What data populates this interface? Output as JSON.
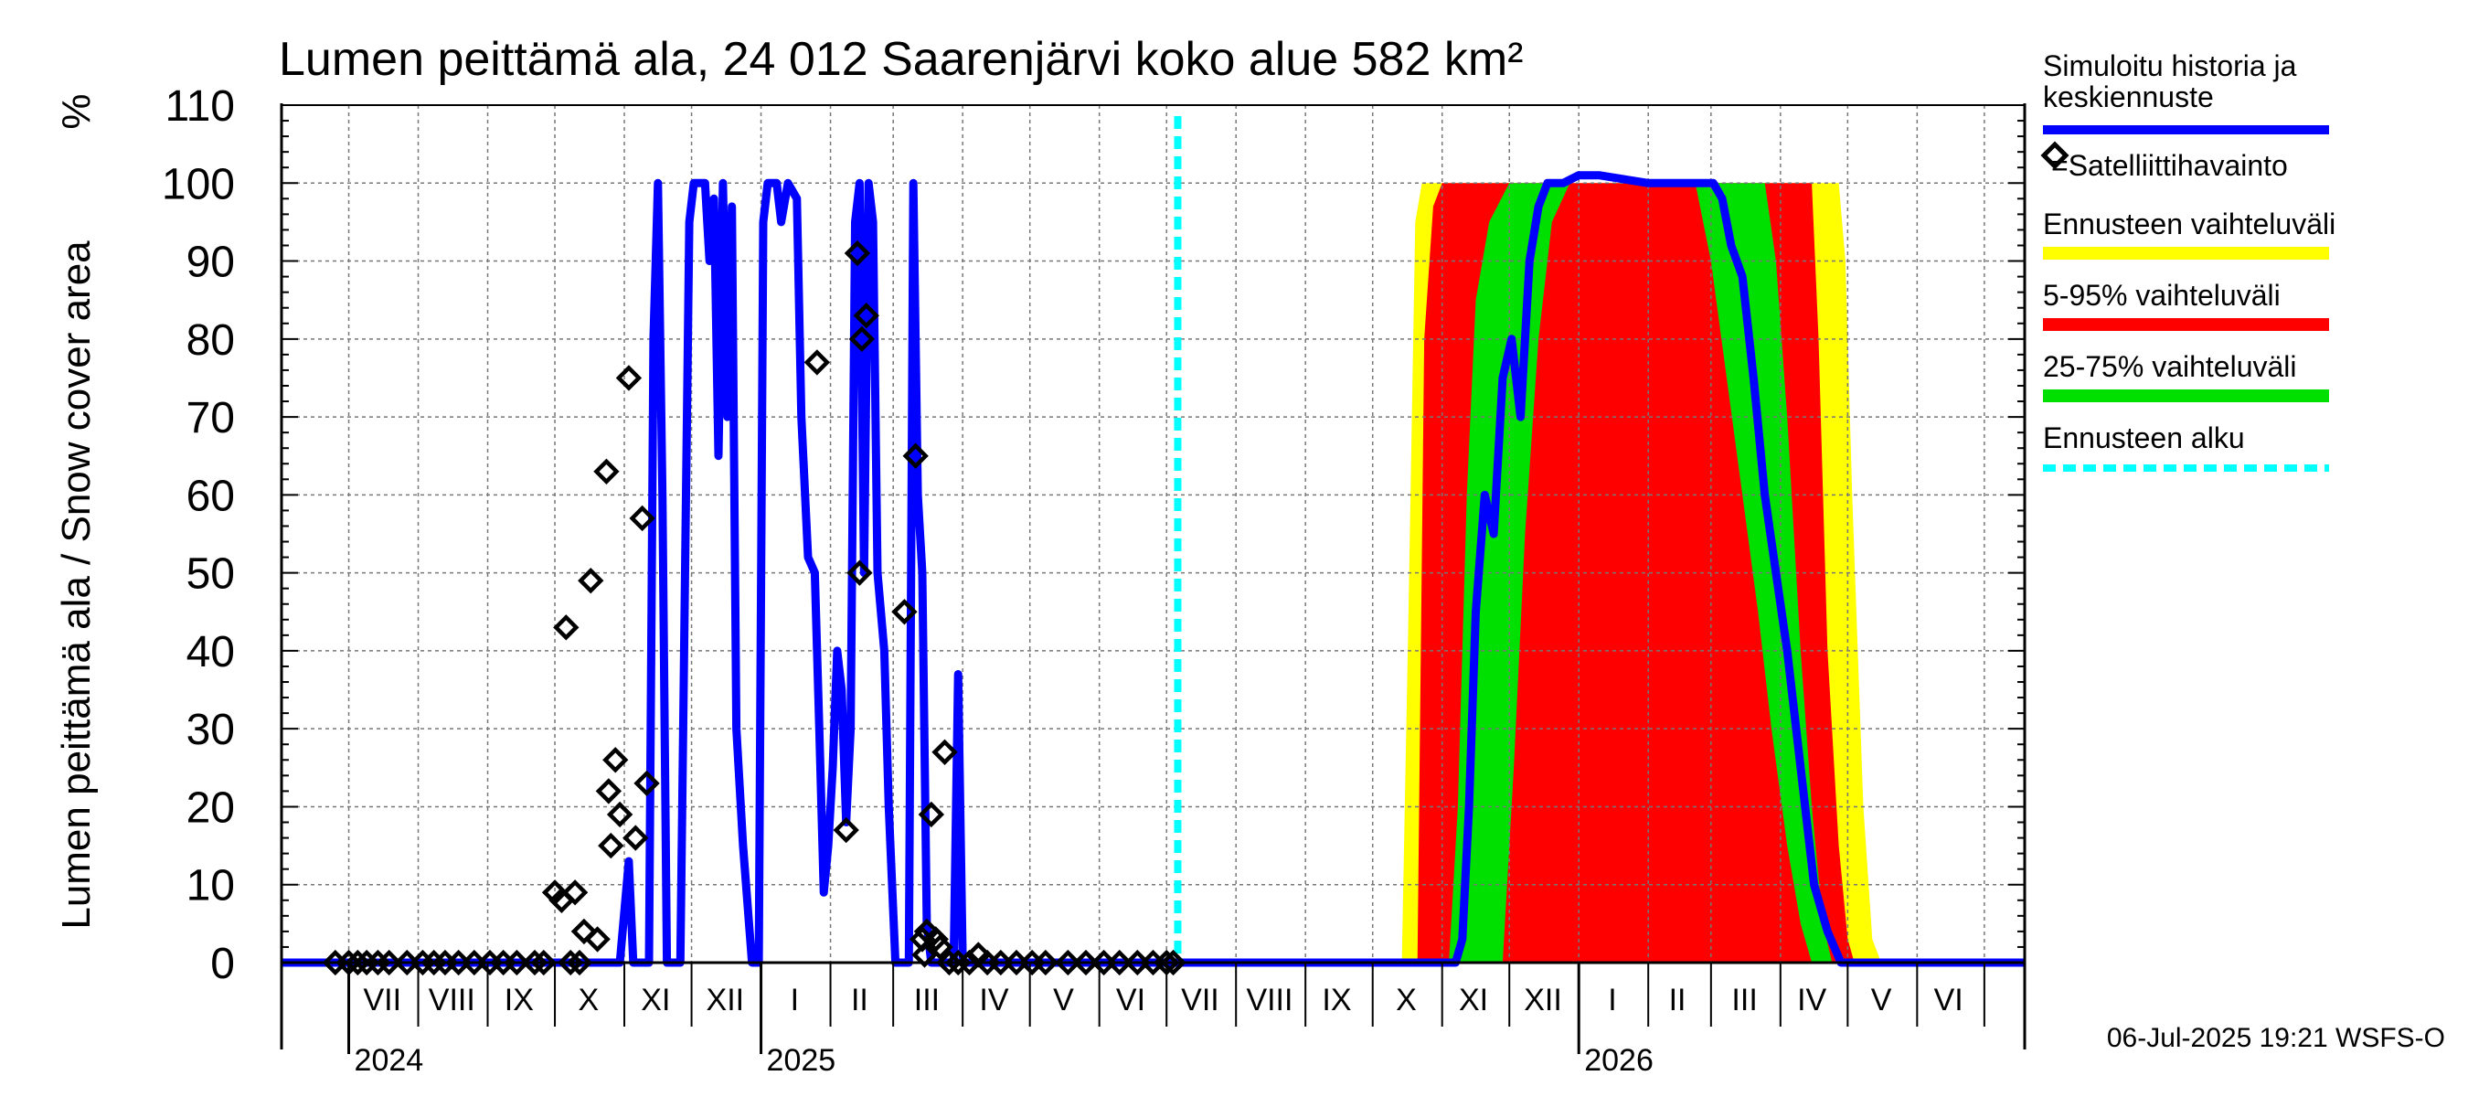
{
  "chart_data": {
    "type": "area",
    "title": "Lumen peittämä ala, 24 012 Saarenjärvi koko alue 582 km²",
    "ylabel": "Lumen peittämä ala / Snow cover area",
    "yunit": "%",
    "ylim": [
      0,
      110
    ],
    "yticks": [
      0,
      10,
      20,
      30,
      40,
      50,
      60,
      70,
      80,
      90,
      100,
      110
    ],
    "grid": true,
    "xlim": [
      "2024-06-01",
      "2026-07-19"
    ],
    "month_labels": [
      {
        "label": "VII",
        "date": "2024-07-16"
      },
      {
        "label": "VIII",
        "date": "2024-08-16"
      },
      {
        "label": "IX",
        "date": "2024-09-15"
      },
      {
        "label": "X",
        "date": "2024-10-16"
      },
      {
        "label": "XI",
        "date": "2024-11-15"
      },
      {
        "label": "XII",
        "date": "2024-12-16"
      },
      {
        "label": "I",
        "date": "2025-01-16"
      },
      {
        "label": "II",
        "date": "2025-02-14"
      },
      {
        "label": "III",
        "date": "2025-03-16"
      },
      {
        "label": "IV",
        "date": "2025-04-15"
      },
      {
        "label": "V",
        "date": "2025-05-16"
      },
      {
        "label": "VI",
        "date": "2025-06-15"
      },
      {
        "label": "VII",
        "date": "2025-07-16"
      },
      {
        "label": "VIII",
        "date": "2025-08-16"
      },
      {
        "label": "IX",
        "date": "2025-09-15"
      },
      {
        "label": "X",
        "date": "2025-10-16"
      },
      {
        "label": "XI",
        "date": "2025-11-15"
      },
      {
        "label": "XII",
        "date": "2025-12-16"
      },
      {
        "label": "I",
        "date": "2026-01-16"
      },
      {
        "label": "II",
        "date": "2026-02-14"
      },
      {
        "label": "III",
        "date": "2026-03-16"
      },
      {
        "label": "IV",
        "date": "2026-04-15"
      },
      {
        "label": "V",
        "date": "2026-05-16"
      },
      {
        "label": "VI",
        "date": "2026-06-15"
      }
    ],
    "month_boundaries": [
      "2024-07-01",
      "2024-08-01",
      "2024-09-01",
      "2024-10-01",
      "2024-11-01",
      "2024-12-01",
      "2025-01-01",
      "2025-02-01",
      "2025-03-01",
      "2025-04-01",
      "2025-05-01",
      "2025-06-01",
      "2025-07-01",
      "2025-08-01",
      "2025-09-01",
      "2025-10-01",
      "2025-11-01",
      "2025-12-01",
      "2026-01-01",
      "2026-02-01",
      "2026-03-01",
      "2026-04-01",
      "2026-05-01",
      "2026-06-01",
      "2026-07-01"
    ],
    "year_labels": [
      {
        "label": "2024",
        "date": "2024-07-01"
      },
      {
        "label": "2025",
        "date": "2025-01-01"
      },
      {
        "label": "2026",
        "date": "2026-01-01"
      }
    ],
    "forecast_start": "2025-07-06",
    "legend": {
      "placement": "right",
      "entries": [
        {
          "name": "Simuloitu historia ja keskiennuste",
          "color": "#0000ff",
          "style": "line"
        },
        {
          "name": "=Satelliittihavainto",
          "color": "#000000",
          "style": "diamond"
        },
        {
          "name": "Ennusteen vaihteluväli",
          "color": "#ffff00",
          "style": "band"
        },
        {
          "name": "5-95% vaihteluväli",
          "color": "#ff0000",
          "style": "band"
        },
        {
          "name": "25-75% vaihteluväli",
          "color": "#00e000",
          "style": "band"
        },
        {
          "name": "Ennusteen alku",
          "color": "#00ffff",
          "style": "dashed"
        }
      ]
    },
    "series": [
      {
        "name": "Simuloitu historia ja keskiennuste",
        "color": "#0000ff",
        "points": [
          [
            "2024-06-01",
            0
          ],
          [
            "2024-10-30",
            0
          ],
          [
            "2024-11-03",
            13
          ],
          [
            "2024-11-05",
            0
          ],
          [
            "2024-11-12",
            0
          ],
          [
            "2024-11-14",
            80
          ],
          [
            "2024-11-16",
            100
          ],
          [
            "2024-11-18",
            60
          ],
          [
            "2024-11-20",
            0
          ],
          [
            "2024-11-26",
            0
          ],
          [
            "2024-11-30",
            95
          ],
          [
            "2024-12-02",
            100
          ],
          [
            "2024-12-07",
            100
          ],
          [
            "2024-12-09",
            90
          ],
          [
            "2024-12-11",
            98
          ],
          [
            "2024-12-13",
            65
          ],
          [
            "2024-12-15",
            100
          ],
          [
            "2024-12-17",
            70
          ],
          [
            "2024-12-19",
            97
          ],
          [
            "2024-12-21",
            30
          ],
          [
            "2024-12-24",
            15
          ],
          [
            "2024-12-28",
            0
          ],
          [
            "2024-12-31",
            0
          ],
          [
            "2025-01-02",
            95
          ],
          [
            "2025-01-04",
            100
          ],
          [
            "2025-01-08",
            100
          ],
          [
            "2025-01-10",
            95
          ],
          [
            "2025-01-13",
            100
          ],
          [
            "2025-01-17",
            98
          ],
          [
            "2025-01-19",
            70
          ],
          [
            "2025-01-22",
            52
          ],
          [
            "2025-01-25",
            50
          ],
          [
            "2025-01-27",
            30
          ],
          [
            "2025-01-29",
            9
          ],
          [
            "2025-01-31",
            15
          ],
          [
            "2025-02-02",
            25
          ],
          [
            "2025-02-04",
            40
          ],
          [
            "2025-02-06",
            35
          ],
          [
            "2025-02-08",
            18
          ],
          [
            "2025-02-10",
            30
          ],
          [
            "2025-02-12",
            95
          ],
          [
            "2025-02-14",
            100
          ],
          [
            "2025-02-16",
            50
          ],
          [
            "2025-02-18",
            100
          ],
          [
            "2025-02-20",
            95
          ],
          [
            "2025-02-22",
            50
          ],
          [
            "2025-02-25",
            40
          ],
          [
            "2025-02-27",
            20
          ],
          [
            "2025-03-02",
            0
          ],
          [
            "2025-03-08",
            0
          ],
          [
            "2025-03-10",
            100
          ],
          [
            "2025-03-12",
            60
          ],
          [
            "2025-03-14",
            50
          ],
          [
            "2025-03-16",
            5
          ],
          [
            "2025-03-18",
            0
          ],
          [
            "2025-03-28",
            0
          ],
          [
            "2025-03-30",
            37
          ],
          [
            "2025-04-01",
            0
          ],
          [
            "2025-07-06",
            0
          ],
          [
            "2025-11-07",
            0
          ],
          [
            "2025-11-10",
            3
          ],
          [
            "2025-11-13",
            20
          ],
          [
            "2025-11-16",
            45
          ],
          [
            "2025-11-20",
            60
          ],
          [
            "2025-11-24",
            55
          ],
          [
            "2025-11-28",
            75
          ],
          [
            "2025-12-02",
            80
          ],
          [
            "2025-12-06",
            70
          ],
          [
            "2025-12-10",
            90
          ],
          [
            "2025-12-14",
            97
          ],
          [
            "2025-12-18",
            100
          ],
          [
            "2025-12-25",
            100
          ],
          [
            "2026-01-01",
            101
          ],
          [
            "2026-01-10",
            101
          ],
          [
            "2026-02-01",
            100
          ],
          [
            "2026-03-02",
            100
          ],
          [
            "2026-03-06",
            98
          ],
          [
            "2026-03-10",
            92
          ],
          [
            "2026-03-15",
            88
          ],
          [
            "2026-03-20",
            75
          ],
          [
            "2026-03-25",
            60
          ],
          [
            "2026-03-30",
            50
          ],
          [
            "2026-04-04",
            40
          ],
          [
            "2026-04-10",
            25
          ],
          [
            "2026-04-16",
            10
          ],
          [
            "2026-04-22",
            4
          ],
          [
            "2026-04-28",
            0
          ],
          [
            "2026-07-19",
            0
          ]
        ]
      }
    ],
    "bands": [
      {
        "name": "Ennusteen vaihteluväli",
        "color": "#ffff00",
        "lower": [
          [
            "2025-07-06",
            0
          ],
          [
            "2026-07-19",
            0
          ]
        ],
        "upper": [
          [
            "2025-07-06",
            0
          ],
          [
            "2025-10-14",
            0
          ],
          [
            "2025-10-17",
            45
          ],
          [
            "2025-10-20",
            95
          ],
          [
            "2025-10-23",
            100
          ],
          [
            "2026-04-27",
            100
          ],
          [
            "2026-04-30",
            90
          ],
          [
            "2026-05-03",
            60
          ],
          [
            "2026-05-08",
            20
          ],
          [
            "2026-05-12",
            3
          ],
          [
            "2026-05-16",
            0
          ],
          [
            "2026-07-19",
            0
          ]
        ]
      },
      {
        "name": "5-95% vaihteluväli",
        "color": "#ff0000",
        "lower": [
          [
            "2025-07-06",
            0
          ],
          [
            "2026-07-19",
            0
          ]
        ],
        "upper": [
          [
            "2025-07-06",
            0
          ],
          [
            "2025-10-21",
            0
          ],
          [
            "2025-10-24",
            80
          ],
          [
            "2025-10-28",
            97
          ],
          [
            "2025-11-01",
            100
          ],
          [
            "2026-04-15",
            100
          ],
          [
            "2026-04-18",
            80
          ],
          [
            "2026-04-22",
            40
          ],
          [
            "2026-04-27",
            15
          ],
          [
            "2026-05-01",
            3
          ],
          [
            "2026-05-04",
            0
          ],
          [
            "2026-07-19",
            0
          ]
        ]
      },
      {
        "name": "25-75% vaihteluväli",
        "color": "#00e000",
        "lower": [
          [
            "2025-07-06",
            0
          ],
          [
            "2025-11-28",
            0
          ],
          [
            "2025-12-03",
            25
          ],
          [
            "2025-12-08",
            55
          ],
          [
            "2025-12-14",
            80
          ],
          [
            "2025-12-20",
            95
          ],
          [
            "2025-12-28",
            100
          ],
          [
            "2026-02-22",
            100
          ],
          [
            "2026-03-01",
            90
          ],
          [
            "2026-03-08",
            75
          ],
          [
            "2026-03-15",
            60
          ],
          [
            "2026-03-22",
            45
          ],
          [
            "2026-03-28",
            30
          ],
          [
            "2026-04-04",
            15
          ],
          [
            "2026-04-10",
            5
          ],
          [
            "2026-04-15",
            0
          ],
          [
            "2026-07-19",
            0
          ]
        ],
        "upper": [
          [
            "2025-07-06",
            0
          ],
          [
            "2025-11-04",
            0
          ],
          [
            "2025-11-08",
            20
          ],
          [
            "2025-11-12",
            60
          ],
          [
            "2025-11-16",
            85
          ],
          [
            "2025-11-22",
            95
          ],
          [
            "2025-12-01",
            100
          ],
          [
            "2026-03-25",
            100
          ],
          [
            "2026-03-30",
            90
          ],
          [
            "2026-04-04",
            70
          ],
          [
            "2026-04-10",
            40
          ],
          [
            "2026-04-15",
            20
          ],
          [
            "2026-04-20",
            5
          ],
          [
            "2026-04-24",
            0
          ],
          [
            "2026-07-19",
            0
          ]
        ]
      }
    ],
    "satellite_observations": [
      [
        "2024-06-25",
        0
      ],
      [
        "2024-07-01",
        0
      ],
      [
        "2024-07-05",
        0
      ],
      [
        "2024-07-09",
        0
      ],
      [
        "2024-07-14",
        0
      ],
      [
        "2024-07-19",
        0
      ],
      [
        "2024-07-27",
        0
      ],
      [
        "2024-08-03",
        0
      ],
      [
        "2024-08-08",
        0
      ],
      [
        "2024-08-13",
        0
      ],
      [
        "2024-08-19",
        0
      ],
      [
        "2024-08-26",
        0
      ],
      [
        "2024-09-02",
        0
      ],
      [
        "2024-09-08",
        0
      ],
      [
        "2024-09-14",
        0
      ],
      [
        "2024-09-22",
        0
      ],
      [
        "2024-09-26",
        0
      ],
      [
        "2024-10-01",
        9
      ],
      [
        "2024-10-04",
        8
      ],
      [
        "2024-10-10",
        9
      ],
      [
        "2024-10-14",
        4
      ],
      [
        "2024-10-17",
        49
      ],
      [
        "2024-10-20",
        3
      ],
      [
        "2024-10-06",
        43
      ],
      [
        "2024-10-24",
        63
      ],
      [
        "2024-10-25",
        22
      ],
      [
        "2024-10-26",
        15
      ],
      [
        "2024-10-28",
        26
      ],
      [
        "2024-10-30",
        19
      ],
      [
        "2024-11-03",
        75
      ],
      [
        "2024-11-06",
        16
      ],
      [
        "2024-11-09",
        57
      ],
      [
        "2024-11-11",
        23
      ],
      [
        "2024-10-08",
        0
      ],
      [
        "2024-10-12",
        0
      ],
      [
        "2025-01-26",
        77
      ],
      [
        "2025-02-08",
        17
      ],
      [
        "2025-02-13",
        91
      ],
      [
        "2025-02-14",
        50
      ],
      [
        "2025-02-15",
        80
      ],
      [
        "2025-02-17",
        83
      ],
      [
        "2025-03-06",
        45
      ],
      [
        "2025-03-11",
        65
      ],
      [
        "2025-03-14",
        3
      ],
      [
        "2025-03-15",
        1
      ],
      [
        "2025-03-16",
        4
      ],
      [
        "2025-03-18",
        19
      ],
      [
        "2025-03-20",
        3
      ],
      [
        "2025-03-22",
        2
      ],
      [
        "2025-03-24",
        27
      ],
      [
        "2025-03-26",
        0
      ],
      [
        "2025-03-30",
        0
      ],
      [
        "2025-04-04",
        0
      ],
      [
        "2025-04-08",
        1
      ],
      [
        "2025-04-12",
        0
      ],
      [
        "2025-04-18",
        0
      ],
      [
        "2025-04-25",
        0
      ],
      [
        "2025-05-02",
        0
      ],
      [
        "2025-05-08",
        0
      ],
      [
        "2025-05-18",
        0
      ],
      [
        "2025-05-26",
        0
      ],
      [
        "2025-06-03",
        0
      ],
      [
        "2025-06-10",
        0
      ],
      [
        "2025-06-18",
        0
      ],
      [
        "2025-06-25",
        0
      ],
      [
        "2025-07-01",
        0
      ],
      [
        "2025-07-04",
        0
      ]
    ],
    "footer": "06-Jul-2025 19:21 WSFS-O"
  }
}
